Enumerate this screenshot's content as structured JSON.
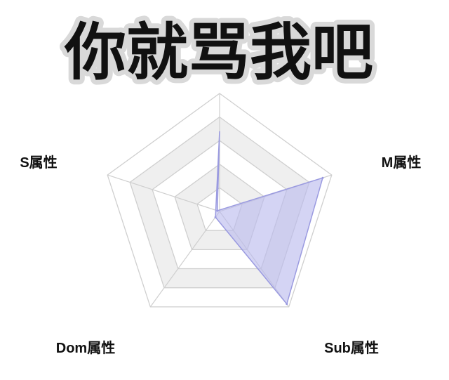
{
  "title": "你就骂我吧",
  "colors": {
    "title_fill": "#111111",
    "title_outline": "#d9d9d9",
    "band_fill": "#efefef",
    "grid_line": "#cfcfcf",
    "series_fill": "#b9b9ee",
    "series_stroke": "#9a9ae0"
  },
  "chart_data": {
    "type": "radar",
    "axes": [
      "Sub属性",
      "Dom属性",
      "S属性",
      "M属性"
    ],
    "grid_levels": 5,
    "range": [
      0,
      1
    ],
    "grid_axes_count": 5,
    "series": [
      {
        "values": [
          0.97,
          0.06,
          0.02,
          0.92
        ]
      }
    ]
  }
}
